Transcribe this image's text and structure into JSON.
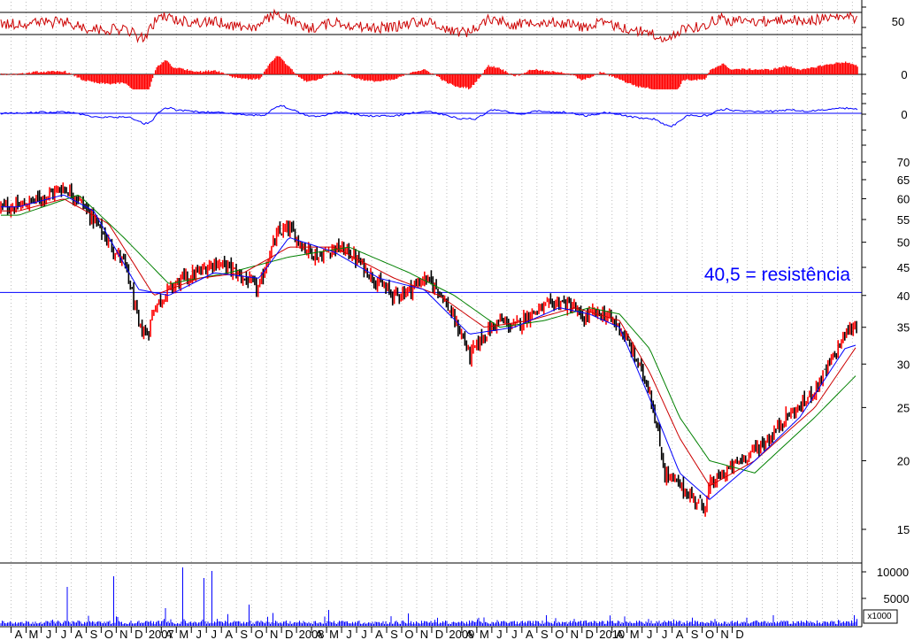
{
  "chart_data": {
    "type": "line",
    "subtype": "candlestick",
    "y_scale": "log",
    "grid": "vertical-dotted",
    "x_axis_labels": [
      "A",
      "M",
      "J",
      "J",
      "A",
      "S",
      "O",
      "N",
      "D",
      "2007",
      "A",
      "M",
      "J",
      "J",
      "A",
      "S",
      "O",
      "N",
      "D",
      "2008",
      "A",
      "M",
      "J",
      "J",
      "A",
      "S",
      "O",
      "N",
      "D",
      "2009",
      "A",
      "M",
      "J",
      "J",
      "A",
      "S",
      "O",
      "N",
      "D",
      "2010",
      "A",
      "M",
      "J",
      "J",
      "A",
      "S",
      "O",
      "N",
      "D"
    ],
    "price_ticks": [
      70,
      65,
      60,
      55,
      50,
      45,
      40,
      35,
      30,
      25,
      20,
      15
    ],
    "price_ylim": [
      13.5,
      75
    ],
    "annotation": {
      "text": "40,5 = resistência",
      "value": 40.5,
      "color": "#0000ff"
    },
    "price_path": [
      [
        0,
        58
      ],
      [
        2,
        61
      ],
      [
        3,
        63
      ],
      [
        4,
        60
      ],
      [
        5,
        55
      ],
      [
        6,
        50
      ],
      [
        7,
        46
      ],
      [
        7.5,
        41
      ],
      [
        8,
        35
      ],
      [
        8.6,
        34
      ],
      [
        9,
        38
      ],
      [
        10,
        41
      ],
      [
        11,
        43
      ],
      [
        12,
        44
      ],
      [
        13,
        46
      ],
      [
        14,
        45
      ],
      [
        15,
        43
      ],
      [
        16,
        41
      ],
      [
        16.6,
        47
      ],
      [
        17.3,
        52
      ],
      [
        18,
        53
      ],
      [
        19,
        49
      ],
      [
        20,
        47
      ],
      [
        21,
        49
      ],
      [
        22,
        48
      ],
      [
        23,
        45
      ],
      [
        24,
        42
      ],
      [
        25,
        40
      ],
      [
        26,
        41
      ],
      [
        27,
        43
      ],
      [
        28,
        41
      ],
      [
        29,
        36
      ],
      [
        29.7,
        33
      ],
      [
        30,
        31
      ],
      [
        31,
        34
      ],
      [
        32,
        36
      ],
      [
        33,
        35
      ],
      [
        34,
        37
      ],
      [
        35,
        38
      ],
      [
        36,
        39
      ],
      [
        37,
        38
      ],
      [
        37.5,
        36
      ],
      [
        38,
        37
      ],
      [
        39,
        37
      ],
      [
        40,
        35
      ],
      [
        41,
        31
      ],
      [
        42,
        27
      ],
      [
        42.6,
        22
      ],
      [
        43,
        19
      ],
      [
        44,
        18
      ],
      [
        45,
        17
      ],
      [
        45.7,
        16.5
      ],
      [
        46,
        18
      ],
      [
        47,
        19
      ],
      [
        48,
        20
      ],
      [
        49,
        21
      ],
      [
        50,
        22
      ],
      [
        51,
        24
      ],
      [
        52,
        25
      ],
      [
        53,
        27
      ],
      [
        54,
        30
      ],
      [
        55,
        34
      ],
      [
        56,
        36
      ],
      [
        57,
        35
      ],
      [
        58,
        33
      ],
      [
        59,
        31
      ],
      [
        60,
        32
      ],
      [
        61,
        34
      ],
      [
        62,
        36
      ],
      [
        63,
        38
      ],
      [
        64,
        39
      ],
      [
        65,
        38
      ],
      [
        66,
        35
      ],
      [
        67,
        34
      ],
      [
        68,
        32
      ],
      [
        69,
        31
      ],
      [
        70,
        32
      ],
      [
        71,
        34
      ],
      [
        72,
        33
      ],
      [
        73,
        32
      ],
      [
        74,
        31
      ],
      [
        75,
        33
      ],
      [
        76,
        37
      ],
      [
        76.5,
        39
      ]
    ],
    "ma_fast_path": [
      [
        0,
        58
      ],
      [
        3,
        61
      ],
      [
        5,
        57
      ],
      [
        8,
        41
      ],
      [
        10,
        40
      ],
      [
        13,
        44
      ],
      [
        16,
        43
      ],
      [
        18,
        51
      ],
      [
        21,
        48
      ],
      [
        24,
        43
      ],
      [
        27,
        41
      ],
      [
        30,
        34
      ],
      [
        33,
        35
      ],
      [
        36,
        38
      ],
      [
        38,
        37
      ],
      [
        40,
        35
      ],
      [
        42,
        26
      ],
      [
        44,
        19
      ],
      [
        46,
        17
      ],
      [
        49,
        20
      ],
      [
        52,
        24
      ],
      [
        55,
        32
      ],
      [
        58,
        34
      ],
      [
        61,
        33
      ],
      [
        64,
        38
      ],
      [
        67,
        35
      ],
      [
        70,
        32
      ],
      [
        73,
        32
      ],
      [
        75,
        32
      ],
      [
        76.5,
        34
      ]
    ],
    "ma_mid_path": [
      [
        0,
        57
      ],
      [
        3,
        60
      ],
      [
        6,
        54
      ],
      [
        9,
        40
      ],
      [
        12,
        43
      ],
      [
        15,
        44
      ],
      [
        18,
        49
      ],
      [
        21,
        49
      ],
      [
        25,
        43
      ],
      [
        28,
        40
      ],
      [
        31,
        35
      ],
      [
        34,
        36
      ],
      [
        37,
        38
      ],
      [
        40,
        36
      ],
      [
        42,
        29
      ],
      [
        44,
        22
      ],
      [
        46,
        18
      ],
      [
        49,
        20
      ],
      [
        53,
        25
      ],
      [
        56,
        33
      ],
      [
        59,
        33
      ],
      [
        63,
        37
      ],
      [
        66,
        36
      ],
      [
        70,
        33
      ],
      [
        74,
        32
      ],
      [
        76.5,
        33
      ]
    ],
    "ma_slow_path": [
      [
        0,
        56
      ],
      [
        4,
        61
      ],
      [
        7,
        51
      ],
      [
        10,
        42
      ],
      [
        14,
        44
      ],
      [
        18,
        47
      ],
      [
        22,
        49
      ],
      [
        26,
        44
      ],
      [
        29,
        40
      ],
      [
        32,
        35
      ],
      [
        35,
        36
      ],
      [
        38,
        38
      ],
      [
        40,
        37
      ],
      [
        42,
        32
      ],
      [
        44,
        24
      ],
      [
        46,
        20
      ],
      [
        49,
        19
      ],
      [
        53,
        24
      ],
      [
        57,
        31
      ],
      [
        61,
        33
      ],
      [
        64,
        36
      ],
      [
        67,
        36
      ],
      [
        71,
        34
      ],
      [
        76.5,
        33
      ]
    ],
    "indicator_panels": [
      {
        "name": "oscillator",
        "tick": "50",
        "upper_bound": 70,
        "lower_bound": 30
      },
      {
        "name": "histogram",
        "tick": "0"
      },
      {
        "name": "signal",
        "tick": "0"
      }
    ],
    "volume_ticks": [
      "10000",
      "5000"
    ],
    "volume_multiplier": "x1000",
    "colors": {
      "up": "#ff0000",
      "down": "#000000",
      "ma_fast": "#0000ff",
      "ma_mid": "#cc0000",
      "ma_slow": "#008000",
      "indicator": "#0000ff",
      "oscillator": "#cc0000"
    }
  }
}
